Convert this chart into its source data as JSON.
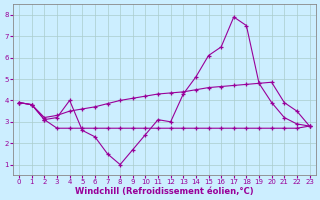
{
  "xlabel": "Windchill (Refroidissement éolien,°C)",
  "background_color": "#cceeff",
  "grid_color": "#aacccc",
  "line_color": "#990099",
  "xlim": [
    -0.5,
    23.5
  ],
  "ylim": [
    0.5,
    8.5
  ],
  "xticks": [
    0,
    1,
    2,
    3,
    4,
    5,
    6,
    7,
    8,
    9,
    10,
    11,
    12,
    13,
    14,
    15,
    16,
    17,
    18,
    19,
    20,
    21,
    22,
    23
  ],
  "yticks": [
    1,
    2,
    3,
    4,
    5,
    6,
    7,
    8
  ],
  "series1_x": [
    0,
    1,
    2,
    3,
    4,
    5,
    6,
    7,
    8,
    9,
    10,
    11,
    12,
    13,
    14,
    15,
    16,
    17,
    18,
    19,
    20,
    21,
    22,
    23
  ],
  "series1_y": [
    3.9,
    3.8,
    3.1,
    3.2,
    4.0,
    2.6,
    2.3,
    1.5,
    1.0,
    1.7,
    2.4,
    3.1,
    3.0,
    4.3,
    5.1,
    6.1,
    6.5,
    7.9,
    7.5,
    4.8,
    3.9,
    3.2,
    2.9,
    2.8
  ],
  "series2_x": [
    0,
    1,
    2,
    3,
    4,
    5,
    6,
    7,
    8,
    9,
    10,
    11,
    12,
    13,
    14,
    15,
    16,
    17,
    18,
    19,
    20,
    21,
    22,
    23
  ],
  "series2_y": [
    3.9,
    3.8,
    3.2,
    3.3,
    3.5,
    3.6,
    3.7,
    3.85,
    4.0,
    4.1,
    4.2,
    4.3,
    4.35,
    4.4,
    4.5,
    4.6,
    4.65,
    4.7,
    4.75,
    4.8,
    4.85,
    3.9,
    3.5,
    2.8
  ],
  "series3_x": [
    0,
    1,
    2,
    3,
    4,
    5,
    6,
    7,
    8,
    9,
    10,
    11,
    12,
    13,
    14,
    15,
    16,
    17,
    18,
    19,
    20,
    21,
    22,
    23
  ],
  "series3_y": [
    3.9,
    3.8,
    3.1,
    2.7,
    2.7,
    2.7,
    2.7,
    2.7,
    2.7,
    2.7,
    2.7,
    2.7,
    2.7,
    2.7,
    2.7,
    2.7,
    2.7,
    2.7,
    2.7,
    2.7,
    2.7,
    2.7,
    2.7,
    2.8
  ],
  "marker": "+",
  "markersize": 3,
  "linewidth": 0.8,
  "tick_fontsize": 5.0,
  "xlabel_fontsize": 6.0
}
